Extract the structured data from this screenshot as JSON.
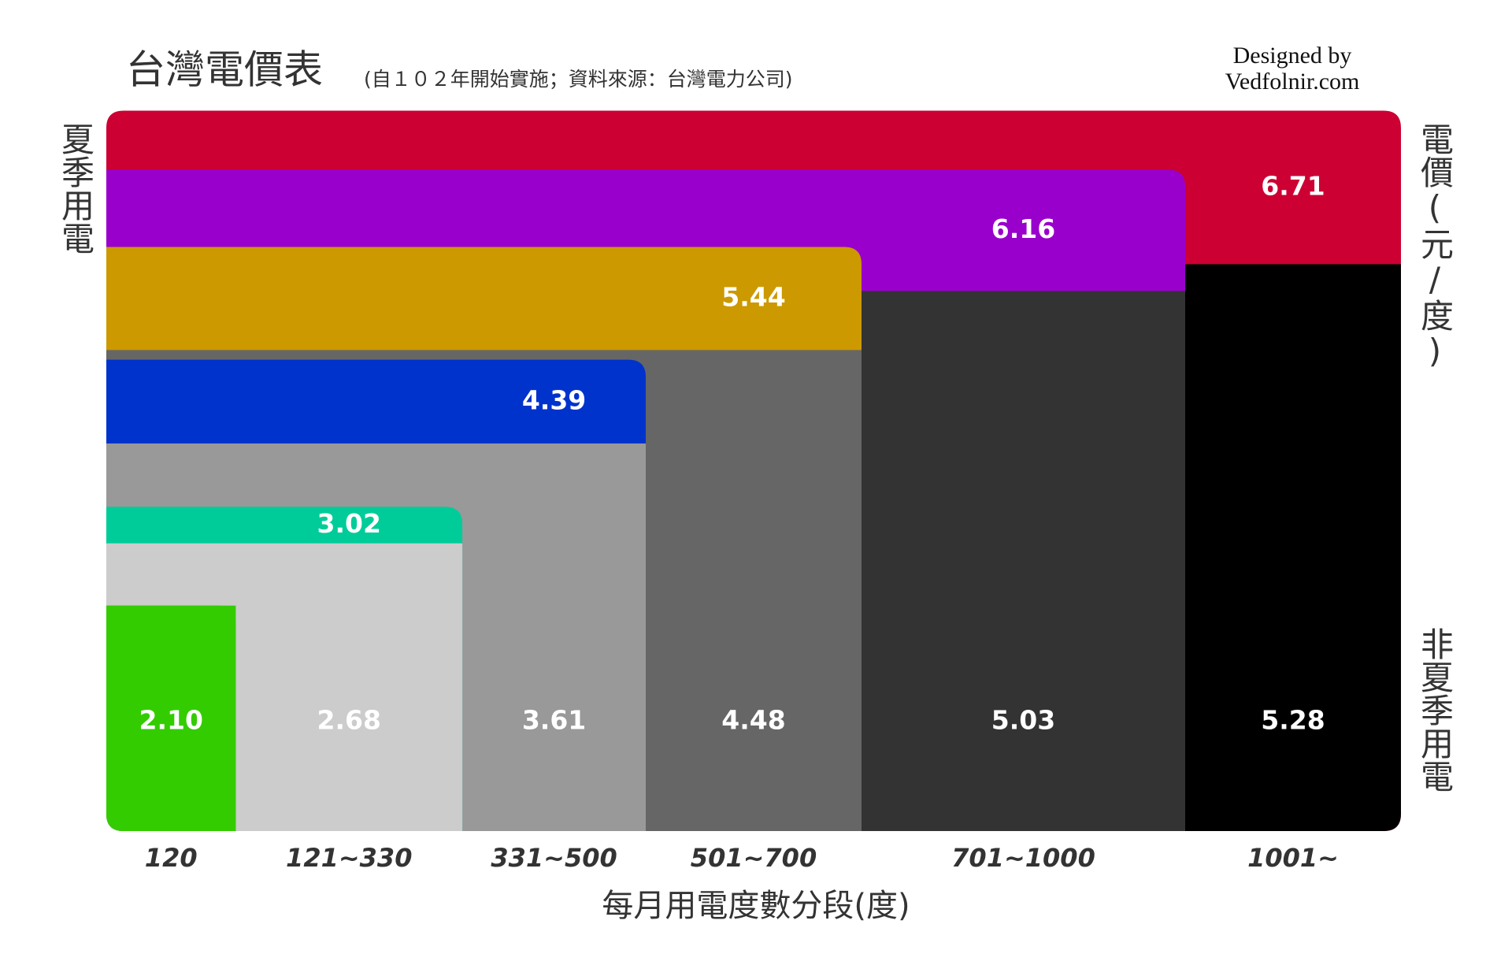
{
  "chart_data": {
    "type": "step-area",
    "title": "台灣電價表",
    "subtitle": "(自１０２年開始實施；資料來源：台灣電力公司)",
    "credit": [
      "Designed by",
      "Vedfolnir.com"
    ],
    "x_label": "每月用電度數分段(度)",
    "y_label": "電價(元/度)",
    "categories": [
      "120",
      "121~330",
      "331~500",
      "501~700",
      "701~1000",
      "1001~"
    ],
    "x_edges": [
      0,
      120,
      330,
      500,
      700,
      1000
    ],
    "xlim": [
      0,
      1200
    ],
    "ylim": [
      0,
      6.75
    ],
    "series": [
      {
        "name": "夏季用電",
        "colors": [
          "#33cc00",
          "#00cc99",
          "#0033cc",
          "#cc9900",
          "#9900cc",
          "#cc0033"
        ],
        "values": [
          2.1,
          3.02,
          4.39,
          5.44,
          6.16,
          6.71
        ],
        "value_labels": [
          null,
          "3.02",
          "4.39",
          "5.44",
          "6.16",
          "6.71"
        ]
      },
      {
        "name": "非夏季用電",
        "colors": [
          "#33cc00",
          "#cccccc",
          "#999999",
          "#666666",
          "#333333",
          "#000000"
        ],
        "values": [
          2.1,
          2.68,
          3.61,
          4.48,
          5.03,
          5.28
        ],
        "value_labels": [
          "2.10",
          "2.68",
          "3.61",
          "4.48",
          "5.03",
          "5.28"
        ]
      }
    ]
  }
}
